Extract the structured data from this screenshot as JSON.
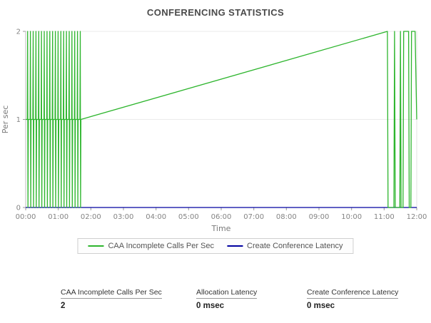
{
  "title": "CONFERENCING STATISTICS",
  "chart_data": {
    "type": "line",
    "title": "CONFERENCING STATISTICS",
    "xlabel": "Time",
    "ylabel": "Per sec",
    "xlim": [
      0,
      12
    ],
    "ylim": [
      0,
      2
    ],
    "x_ticks": [
      "00:00",
      "01:00",
      "02:00",
      "03:00",
      "04:00",
      "05:00",
      "06:00",
      "07:00",
      "08:00",
      "09:00",
      "10:00",
      "11:00",
      "12:00"
    ],
    "y_ticks": [
      0,
      1,
      2
    ],
    "grid": true,
    "legend_position": "bottom",
    "series": [
      {
        "name": "CAA Incomplete Calls Per Sec",
        "color": "#2db52d",
        "points": [
          [
            0,
            1
          ],
          [
            0.05,
            1
          ],
          [
            0.06,
            2
          ],
          [
            0.07,
            0
          ],
          [
            0.08,
            1
          ],
          [
            0.135,
            1
          ],
          [
            0.145,
            2
          ],
          [
            0.155,
            0
          ],
          [
            0.165,
            1
          ],
          [
            0.22,
            1
          ],
          [
            0.23,
            2
          ],
          [
            0.24,
            0
          ],
          [
            0.25,
            1
          ],
          [
            0.305,
            1
          ],
          [
            0.315,
            2
          ],
          [
            0.325,
            0
          ],
          [
            0.335,
            1
          ],
          [
            0.39,
            1
          ],
          [
            0.4,
            2
          ],
          [
            0.41,
            0
          ],
          [
            0.42,
            1
          ],
          [
            0.475,
            1
          ],
          [
            0.485,
            2
          ],
          [
            0.495,
            0
          ],
          [
            0.505,
            1
          ],
          [
            0.56,
            1
          ],
          [
            0.57,
            2
          ],
          [
            0.58,
            0
          ],
          [
            0.59,
            1
          ],
          [
            0.645,
            1
          ],
          [
            0.655,
            2
          ],
          [
            0.665,
            0
          ],
          [
            0.675,
            1
          ],
          [
            0.73,
            1
          ],
          [
            0.74,
            2
          ],
          [
            0.75,
            0
          ],
          [
            0.76,
            1
          ],
          [
            0.815,
            1
          ],
          [
            0.825,
            2
          ],
          [
            0.835,
            0
          ],
          [
            0.845,
            1
          ],
          [
            0.9,
            1
          ],
          [
            0.91,
            2
          ],
          [
            0.92,
            0
          ],
          [
            0.93,
            1
          ],
          [
            0.985,
            1
          ],
          [
            0.995,
            2
          ],
          [
            1.005,
            0
          ],
          [
            1.015,
            1
          ],
          [
            1.07,
            1
          ],
          [
            1.08,
            2
          ],
          [
            1.09,
            0
          ],
          [
            1.1,
            1
          ],
          [
            1.155,
            1
          ],
          [
            1.165,
            2
          ],
          [
            1.175,
            0
          ],
          [
            1.185,
            1
          ],
          [
            1.24,
            1
          ],
          [
            1.25,
            2
          ],
          [
            1.26,
            0
          ],
          [
            1.27,
            1
          ],
          [
            1.325,
            1
          ],
          [
            1.335,
            2
          ],
          [
            1.345,
            0
          ],
          [
            1.355,
            1
          ],
          [
            1.41,
            1
          ],
          [
            1.42,
            2
          ],
          [
            1.43,
            0
          ],
          [
            1.44,
            1
          ],
          [
            1.495,
            1
          ],
          [
            1.505,
            2
          ],
          [
            1.515,
            0
          ],
          [
            1.525,
            1
          ],
          [
            1.58,
            1
          ],
          [
            1.59,
            2
          ],
          [
            1.6,
            0
          ],
          [
            1.61,
            1
          ],
          [
            1.665,
            1
          ],
          [
            1.675,
            2
          ],
          [
            1.685,
            0
          ],
          [
            1.695,
            1
          ],
          [
            11.1,
            2
          ],
          [
            11.12,
            0
          ],
          [
            11.3,
            0
          ],
          [
            11.32,
            2
          ],
          [
            11.34,
            0
          ],
          [
            11.48,
            0
          ],
          [
            11.5,
            2
          ],
          [
            11.52,
            0
          ],
          [
            11.58,
            0
          ],
          [
            11.6,
            2
          ],
          [
            11.75,
            2
          ],
          [
            11.77,
            0
          ],
          [
            11.82,
            0
          ],
          [
            11.84,
            2
          ],
          [
            11.95,
            2
          ],
          [
            12,
            1
          ]
        ]
      },
      {
        "name": "Create Conference Latency",
        "color": "#0000a0",
        "points": [
          [
            0,
            0
          ],
          [
            12,
            0
          ]
        ]
      }
    ]
  },
  "stats": [
    {
      "label": "CAA Incomplete Calls Per Sec",
      "value": "2"
    },
    {
      "label": "Allocation Latency",
      "value": "0 msec"
    },
    {
      "label": "Create Conference Latency",
      "value": "0 msec"
    }
  ],
  "colors": {
    "series_green": "#2db52d",
    "series_blue": "#0000a0",
    "grid": "#e8e8e8",
    "axis": "#8c8c8c"
  }
}
